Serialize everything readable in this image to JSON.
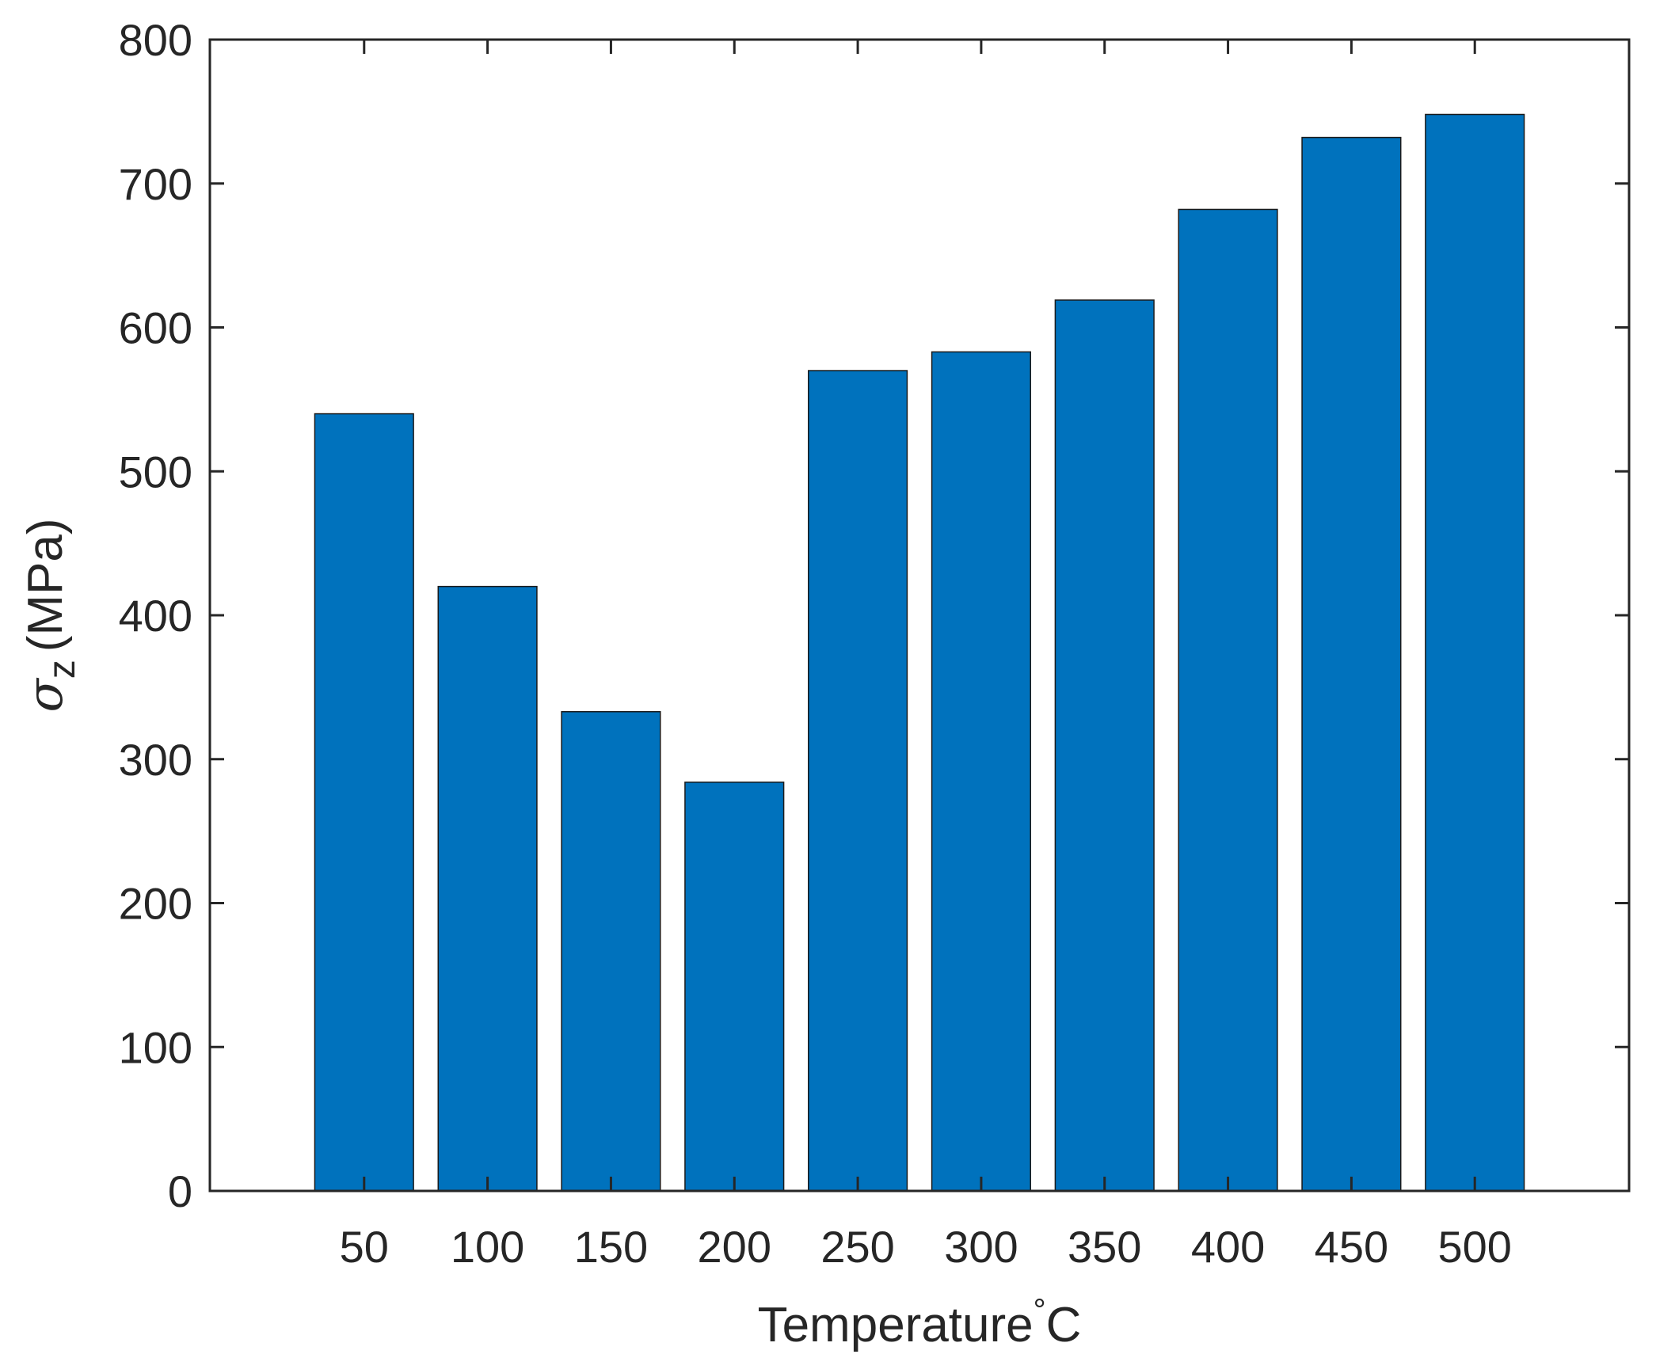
{
  "colors": {
    "bar": "#0072BD",
    "bar_edge": "#1a1a1a",
    "axis": "#262626",
    "background": "#ffffff"
  },
  "chart_data": {
    "type": "bar",
    "categories": [
      "50",
      "100",
      "150",
      "200",
      "250",
      "300",
      "350",
      "400",
      "450",
      "500"
    ],
    "values": [
      540,
      420,
      333,
      284,
      570,
      583,
      619,
      682,
      732,
      748
    ],
    "title": "",
    "xlabel": "Temperature°C",
    "xlabel_main": "Temperature",
    "xlabel_degree": "°",
    "xlabel_unit": "C",
    "ylabel": "σz (MPa)",
    "ylabel_symbol": "σ",
    "ylabel_subscript": "z",
    "ylabel_unit": "(MPa)",
    "ylim": [
      0,
      800
    ],
    "yticks": [
      0,
      100,
      200,
      300,
      400,
      500,
      600,
      700,
      800
    ],
    "grid": false,
    "legend": "none"
  }
}
